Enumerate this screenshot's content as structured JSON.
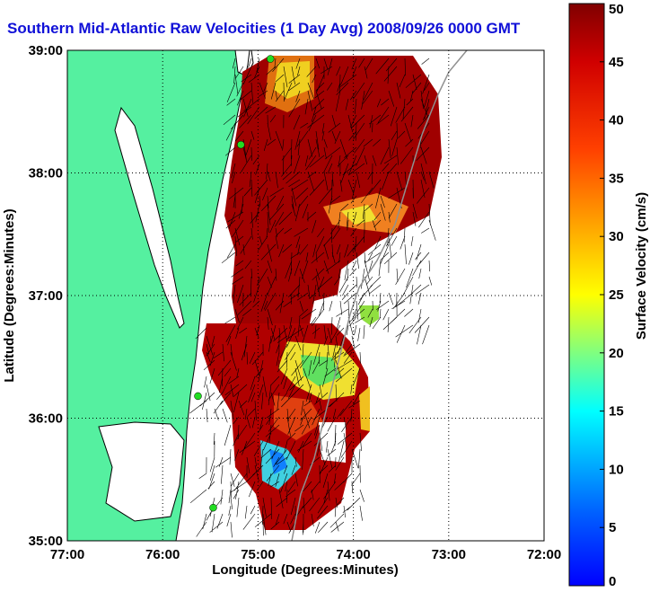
{
  "chart_data": {
    "type": "heatmap",
    "title": "Southern Mid-Atlantic Raw Velocities (1 Day Avg) 2008/09/26 0000 GMT",
    "xlabel": "Longitude (Degrees:Minutes)",
    "ylabel": "Latitude (Degrees:Minutes)",
    "colorbar_label": "Surface Velocity (cm/s)",
    "x_ticks": [
      {
        "value": -77,
        "label": "77:00"
      },
      {
        "value": -76,
        "label": "76:00"
      },
      {
        "value": -75,
        "label": "75:00"
      },
      {
        "value": -74,
        "label": "74:00"
      },
      {
        "value": -73,
        "label": "73:00"
      },
      {
        "value": -72,
        "label": "72:00"
      }
    ],
    "y_ticks": [
      {
        "value": 35,
        "label": "35:00"
      },
      {
        "value": 36,
        "label": "36:00"
      },
      {
        "value": 37,
        "label": "37:00"
      },
      {
        "value": 38,
        "label": "38:00"
      },
      {
        "value": 39,
        "label": "39:00"
      }
    ],
    "xlim": [
      -77,
      -72
    ],
    "ylim": [
      35,
      39
    ],
    "colorbar": {
      "range": [
        0,
        50
      ],
      "ticks": [
        0,
        5,
        10,
        15,
        20,
        25,
        30,
        35,
        40,
        45,
        50
      ],
      "colormap": "jet"
    },
    "grid": "dotted",
    "land_color": "#55f0a0",
    "vector_color": "#000000",
    "station_color": "#22dd22",
    "stations": [
      {
        "lon": -74.87,
        "lat": 38.93
      },
      {
        "lon": -75.18,
        "lat": 38.23
      },
      {
        "lon": -75.63,
        "lat": 36.18
      },
      {
        "lon": -75.47,
        "lat": 35.27
      }
    ]
  }
}
